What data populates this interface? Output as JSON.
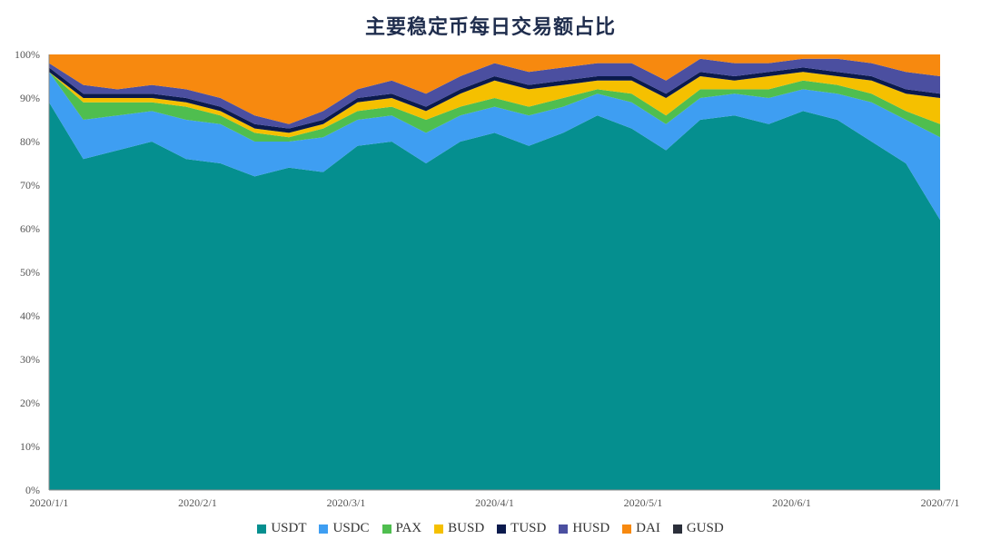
{
  "chart_data": {
    "type": "area",
    "stacked": true,
    "percent": true,
    "title": "主要稳定币每日交易额占比",
    "xlabel": "",
    "ylabel": "",
    "ylim": [
      0,
      100
    ],
    "y_ticks": [
      "0%",
      "10%",
      "20%",
      "30%",
      "40%",
      "50%",
      "60%",
      "70%",
      "80%",
      "90%",
      "100%"
    ],
    "x_ticks": [
      "2020/1/1",
      "2020/2/1",
      "2020/3/1",
      "2020/4/1",
      "2020/5/1",
      "2020/6/1",
      "2020/7/1"
    ],
    "legend_position": "bottom",
    "grid": false,
    "x": [
      "2020/1/1",
      "2020/1/8",
      "2020/1/15",
      "2020/1/22",
      "2020/1/29",
      "2020/2/5",
      "2020/2/12",
      "2020/2/19",
      "2020/2/26",
      "2020/3/4",
      "2020/3/11",
      "2020/3/18",
      "2020/3/25",
      "2020/4/1",
      "2020/4/8",
      "2020/4/15",
      "2020/4/22",
      "2020/4/29",
      "2020/5/6",
      "2020/5/13",
      "2020/5/20",
      "2020/5/27",
      "2020/6/3",
      "2020/6/10",
      "2020/6/17",
      "2020/6/24",
      "2020/7/1"
    ],
    "series": [
      {
        "name": "USDT",
        "color": "#058f8f",
        "values": [
          89,
          76,
          78,
          80,
          76,
          75,
          72,
          74,
          73,
          79,
          80,
          75,
          80,
          82,
          79,
          82,
          86,
          83,
          78,
          85,
          86,
          84,
          87,
          85,
          80,
          75,
          62
        ]
      },
      {
        "name": "USDC",
        "color": "#3e9ef2",
        "values": [
          7,
          9,
          8,
          7,
          9,
          9,
          8,
          6,
          8,
          6,
          6,
          7,
          6,
          6,
          7,
          6,
          5,
          6,
          6,
          5,
          5,
          6,
          5,
          6,
          9,
          10,
          19
        ]
      },
      {
        "name": "PAX",
        "color": "#4fbe4f",
        "values": [
          0,
          4,
          3,
          2,
          3,
          2,
          2,
          1,
          2,
          2,
          2,
          3,
          2,
          2,
          2,
          2,
          1,
          2,
          2,
          2,
          1,
          2,
          2,
          2,
          2,
          2,
          3
        ]
      },
      {
        "name": "BUSD",
        "color": "#f5c000",
        "values": [
          0,
          1,
          1,
          1,
          1,
          1,
          1,
          1,
          1,
          2,
          2,
          2,
          3,
          4,
          4,
          3,
          2,
          3,
          4,
          3,
          2,
          3,
          2,
          2,
          3,
          4,
          6
        ]
      },
      {
        "name": "TUSD",
        "color": "#0b1a4d",
        "values": [
          1,
          1,
          1,
          1,
          1,
          1,
          1,
          1,
          1,
          1,
          1,
          1,
          1,
          1,
          1,
          1,
          1,
          1,
          1,
          1,
          1,
          1,
          1,
          1,
          1,
          1,
          1
        ]
      },
      {
        "name": "HUSD",
        "color": "#4b4fa0",
        "values": [
          1,
          2,
          1,
          2,
          2,
          2,
          2,
          1,
          2,
          2,
          3,
          3,
          3,
          3,
          3,
          3,
          3,
          3,
          3,
          3,
          3,
          2,
          2,
          3,
          3,
          4,
          4
        ]
      },
      {
        "name": "DAI",
        "color": "#f7890f",
        "values": [
          2,
          7,
          8,
          7,
          8,
          10,
          14,
          16,
          13,
          8,
          6,
          9,
          5,
          2,
          4,
          3,
          2,
          2,
          6,
          1,
          2,
          2,
          1,
          1,
          2,
          4,
          5
        ]
      },
      {
        "name": "GUSD",
        "color": "#2b2f3a",
        "values": [
          0,
          0,
          0,
          0,
          0,
          0,
          0,
          0,
          0,
          0,
          0,
          0,
          0,
          0,
          0,
          0,
          0,
          0,
          0,
          0,
          0,
          0,
          0,
          0,
          0,
          0,
          0
        ]
      }
    ]
  }
}
